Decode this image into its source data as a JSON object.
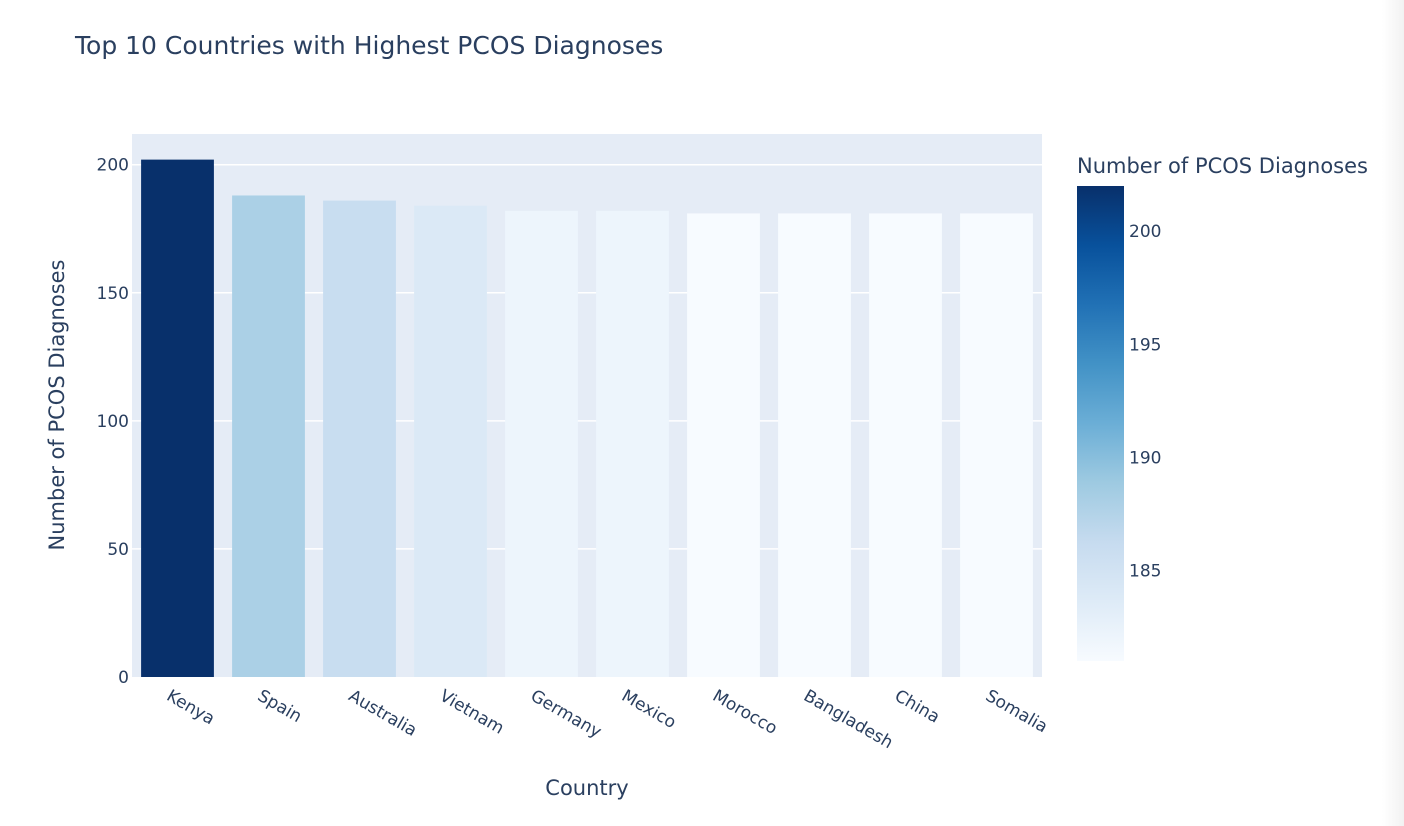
{
  "chart_data": {
    "type": "bar",
    "title": "Top 10 Countries with Highest PCOS Diagnoses",
    "xlabel": "Country",
    "ylabel": "Number of PCOS Diagnoses",
    "categories": [
      "Kenya",
      "Spain",
      "Australia",
      "Vietnam",
      "Germany",
      "Mexico",
      "Morocco",
      "Bangladesh",
      "China",
      "Somalia"
    ],
    "values": [
      202,
      188,
      186,
      184,
      182,
      182,
      181,
      181,
      181,
      181
    ],
    "ylim": [
      0,
      212
    ],
    "yticks": [
      0,
      50,
      100,
      150,
      200
    ],
    "grid": true,
    "colorbar": {
      "title": "Number of PCOS Diagnoses",
      "range": [
        181,
        202
      ],
      "ticks": [
        185,
        190,
        195,
        200
      ],
      "colorscale": [
        "#f7fbff",
        "#deebf7",
        "#c6dbef",
        "#9ecae1",
        "#6baed6",
        "#4292c6",
        "#2171b5",
        "#08519c",
        "#08306b"
      ]
    },
    "colors": {
      "plot_bg": "#e5ecf6",
      "grid": "#ffffff",
      "text": "#2a3f5f"
    }
  }
}
